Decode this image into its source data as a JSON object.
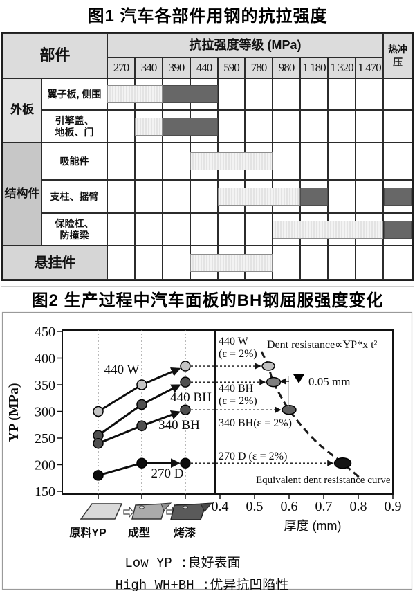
{
  "chart_data": [
    {
      "type": "table",
      "title": "图1 汽车各部件用钢的抗拉强度",
      "headers": {
        "part": "部件",
        "strength_group": "抗拉强度等级 (MPa)",
        "hot_stamp": "热冲压"
      },
      "grades": [
        "270",
        "340",
        "390",
        "440",
        "590",
        "780",
        "980",
        "1 180",
        "1 320",
        "1 470"
      ],
      "colors": {
        "light_bar": "#ededed",
        "dark_bar": "#676767",
        "header_bg": "#dcdcdc"
      },
      "category_spans": [
        {
          "label": "外板",
          "from_row": 0,
          "to_row": 2,
          "bg": "#e3e3e3"
        },
        {
          "label": "结构件",
          "from_row": 2,
          "to_row": 5,
          "bg": "#c7c7c7"
        },
        {
          "label": "悬挂件",
          "from_row": 5,
          "to_row": 6,
          "bg": "#d6d6d6"
        }
      ],
      "rows": [
        {
          "category": "外板",
          "part": "翼子板, 侧围",
          "light_span": [
            0,
            2
          ],
          "dark_span": [
            2,
            4
          ],
          "hot_stamp_dark": false
        },
        {
          "category": "外板",
          "part": "引擎盖、\n地板、门",
          "light_span": [
            1,
            2
          ],
          "dark_span": [
            2,
            4
          ],
          "hot_stamp_dark": false
        },
        {
          "category": "结构件",
          "part": "吸能件",
          "light_span": [
            3,
            6
          ],
          "dark_span": null,
          "hot_stamp_dark": false
        },
        {
          "category": "结构件",
          "part": "支柱、摇臂",
          "light_span": [
            4,
            7
          ],
          "dark_span": [
            7,
            8
          ],
          "hot_stamp_dark": true
        },
        {
          "category": "结构件",
          "part": "保险杠、\n防撞梁",
          "light_span": [
            6,
            10
          ],
          "dark_span": null,
          "hot_stamp_dark": true
        },
        {
          "category": "悬挂件",
          "part": null,
          "light_span": [
            3,
            6
          ],
          "dark_span": null,
          "hot_stamp_dark": false
        }
      ]
    },
    {
      "type": "line",
      "title": "图2 生产过程中汽车面板的BH钢屈服强度变化",
      "left_panel": {
        "ylabel": "YP (MPa)",
        "yticks": [
          150,
          200,
          250,
          300,
          350,
          400,
          450
        ],
        "ylim": [
          150,
          450
        ],
        "stages": [
          "原料YP",
          "成型",
          "烤漆"
        ],
        "series": [
          {
            "name": "440 W",
            "color": "#c4c4c4",
            "values": [
              300,
              350,
              385
            ]
          },
          {
            "name": "440 BH",
            "color": "#4f4f4f",
            "values": [
              255,
              313,
              355
            ]
          },
          {
            "name": "340 BH",
            "color": "#4f4f4f",
            "values": [
              240,
              273,
              303
            ]
          },
          {
            "name": "270 D",
            "color": "#0d0d0d",
            "values": [
              180,
              203,
              203
            ]
          }
        ]
      },
      "right_panel": {
        "xlabel": "厚度 (mm)",
        "xticks": [
          0.4,
          0.5,
          0.6,
          0.7,
          0.8,
          0.9
        ],
        "xlim": [
          0.4,
          0.9
        ],
        "points": [
          {
            "label_lines": [
              "440 W",
              "(ε = 2%)"
            ],
            "thickness": 0.54,
            "yp": 385,
            "color": "#bfbfbf"
          },
          {
            "label_lines": [
              "440 BH",
              "(ε = 2%)"
            ],
            "thickness": 0.555,
            "yp": 355,
            "color": "#7d7d7d"
          },
          {
            "label_lines": [
              "340 BH(ε = 2%)"
            ],
            "thickness": 0.6,
            "yp": 303,
            "color": "#5f5f5f"
          },
          {
            "label_lines": [
              "270 D (ε = 2%)"
            ],
            "thickness": 0.755,
            "yp": 203,
            "color": "#141414"
          }
        ],
        "annotations": {
          "formula": "Dent resistance∝YP*x t²",
          "delta": "0.05 mm",
          "curve_label": "Equivalent dent resistance curve"
        }
      },
      "captions": [
        "Low YP :良好表面",
        "High WH+BH :优异抗凹陷性"
      ]
    }
  ]
}
